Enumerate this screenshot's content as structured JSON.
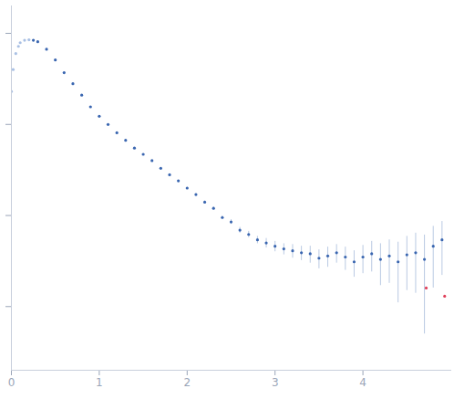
{
  "chart_data": {
    "type": "scatter",
    "log": "y",
    "tick_labels": "x",
    "xlim": [
      0,
      5
    ],
    "xticks": [
      0,
      1,
      2,
      3,
      4
    ],
    "ylim": [
      0.0002,
      2
    ],
    "yticks": [
      0.001,
      0.01,
      0.1,
      1
    ],
    "series": [
      {
        "color": "#a9c0e4",
        "marker": "circle",
        "x": [
          0.0,
          0.02,
          0.05,
          0.08,
          0.1,
          0.15,
          0.2
        ],
        "values": [
          0.23,
          0.4,
          0.6,
          0.72,
          0.79,
          0.84,
          0.85
        ]
      },
      {
        "color": "#3a66b0",
        "marker": "circle",
        "x": [
          0.25,
          0.3,
          0.4,
          0.5,
          0.6,
          0.7,
          0.8,
          0.9,
          1.0,
          1.1,
          1.2,
          1.3,
          1.4,
          1.5,
          1.6,
          1.7,
          1.8,
          1.9,
          2.0,
          2.1,
          2.2,
          2.3,
          2.4,
          2.5,
          2.6,
          2.7,
          2.8,
          2.9,
          3.0,
          3.1,
          3.2,
          3.3,
          3.4,
          3.5,
          3.6,
          3.7,
          3.8,
          3.9,
          4.0,
          4.1,
          4.2,
          4.3,
          4.4,
          4.5,
          4.6,
          4.7,
          4.8,
          4.9
        ],
        "values": [
          0.84,
          0.81,
          0.67,
          0.51,
          0.37,
          0.28,
          0.21,
          0.156,
          0.123,
          0.1,
          0.081,
          0.067,
          0.055,
          0.047,
          0.04,
          0.033,
          0.028,
          0.024,
          0.02,
          0.017,
          0.014,
          0.012,
          0.0095,
          0.0085,
          0.0069,
          0.0062,
          0.0054,
          0.005,
          0.0046,
          0.0043,
          0.0041,
          0.0039,
          0.0038,
          0.0034,
          0.0036,
          0.0039,
          0.0035,
          0.0031,
          0.0035,
          0.0038,
          0.0033,
          0.0036,
          0.0031,
          0.0037,
          0.0039,
          0.0033,
          0.0046,
          0.0054
        ],
        "errors": [
          0.008,
          0.008,
          0.007,
          0.005,
          0.004,
          0.003,
          0.002,
          0.0016,
          0.0013,
          0.0011,
          0.0009,
          0.0008,
          0.0007,
          0.0006,
          0.0005,
          0.0005,
          0.0004,
          0.0004,
          0.0004,
          0.0004,
          0.0004,
          0.0004,
          0.0004,
          0.0005,
          0.0005,
          0.0005,
          0.0005,
          0.0006,
          0.0006,
          0.0006,
          0.0007,
          0.0007,
          0.0008,
          0.0008,
          0.0009,
          0.0009,
          0.001,
          0.001,
          0.0012,
          0.0014,
          0.0016,
          0.0018,
          0.002,
          0.0022,
          0.0025,
          0.0028,
          0.003,
          0.0032
        ]
      },
      {
        "color": "#e0405a",
        "marker": "circle",
        "x": [
          4.72,
          4.93
        ],
        "values": [
          0.0016,
          0.0013
        ]
      }
    ]
  }
}
